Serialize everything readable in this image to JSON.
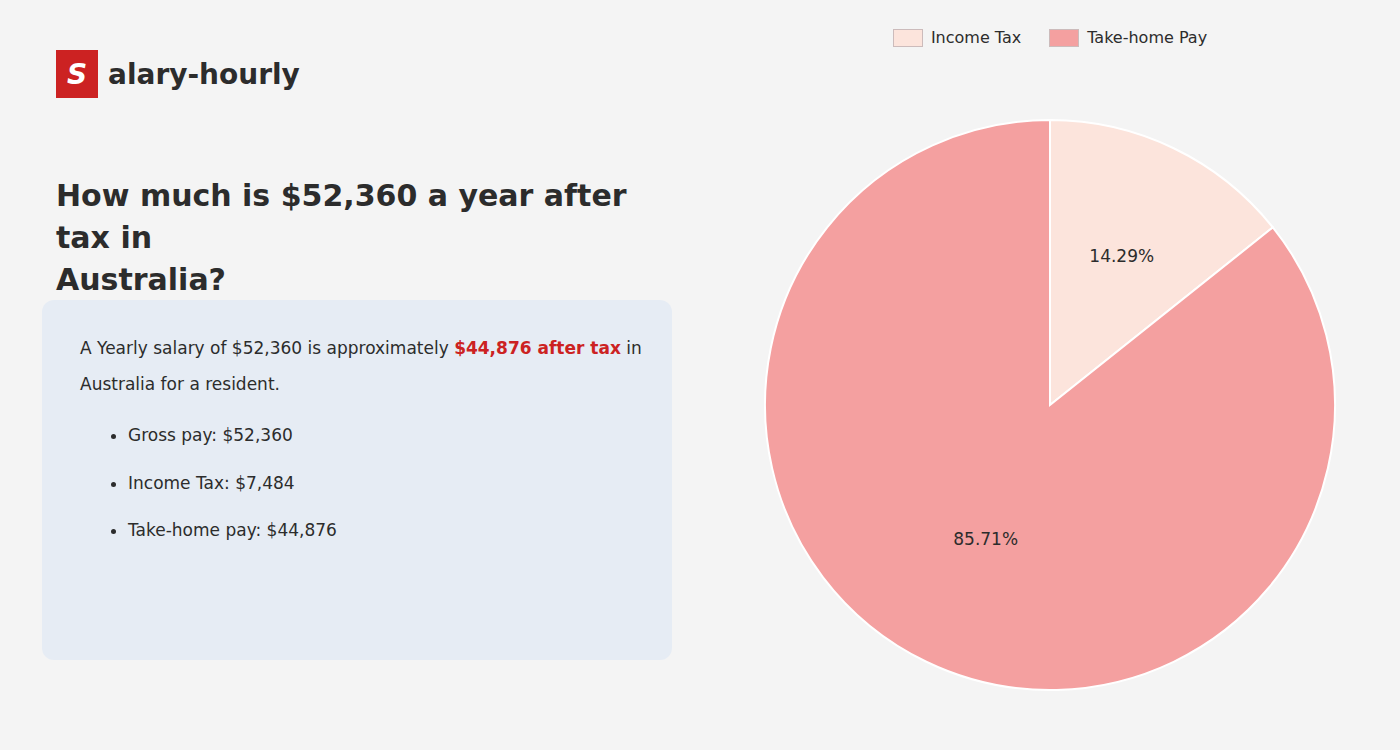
{
  "chart_data": {
    "type": "pie",
    "title": "How much is $52,360 a year after tax in\nAustralia?",
    "categories": [
      "Income Tax",
      "Take-home Pay"
    ],
    "values": [
      14.29,
      85.71
    ],
    "value_labels": [
      "14.29%",
      "85.71%"
    ],
    "colors": [
      "#fce4dc",
      "#f4a0a0"
    ],
    "data_labels": true,
    "legend": "top",
    "annotations": [
      {
        "text": "S",
        "color": "#cc2222"
      },
      {
        "text": "alary-hourly"
      },
      {
        "text": "A Yearly salary of $52,360 is approximately "
      },
      {
        "text": "$44,876 after tax",
        "color": "#cc2222"
      },
      {
        "text": " in"
      },
      {
        "text": "Australia for a resident."
      },
      {
        "text": "Gross pay: $52,360"
      },
      {
        "text": "Income Tax: $7,484"
      },
      {
        "text": "Take-home pay: $44,876"
      }
    ]
  }
}
